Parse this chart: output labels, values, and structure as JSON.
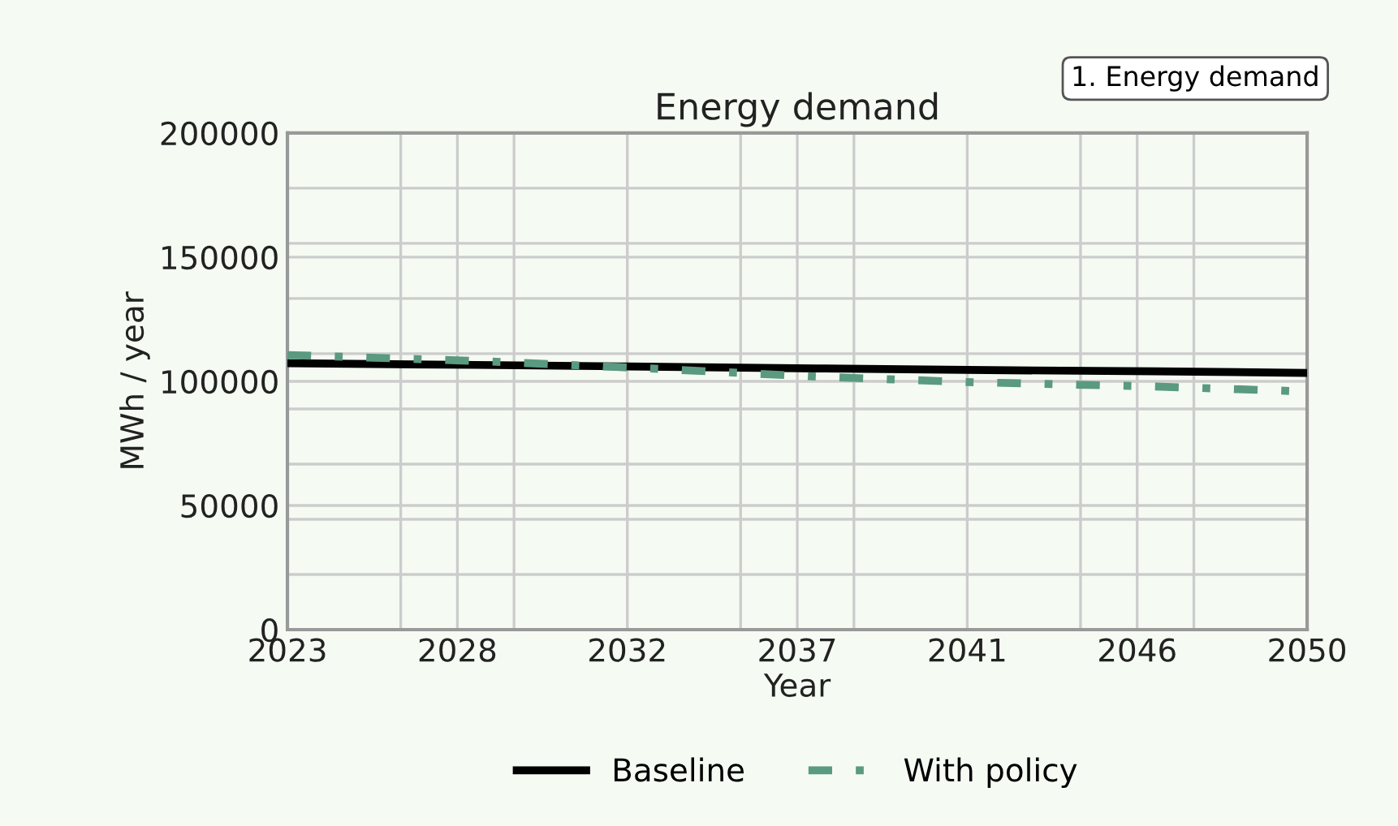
{
  "chart_data": {
    "type": "line",
    "title": "Energy demand",
    "xlabel": "Year",
    "ylabel": "MWh / year",
    "annotations": [
      "1. Energy demand"
    ],
    "xlim": [
      2023,
      2050
    ],
    "xticks": [
      2023,
      {
        "value": 2026,
        "label": null
      },
      {
        "value": 2027.5,
        "label": "2028"
      },
      {
        "value": 2029,
        "label": null
      },
      2032,
      {
        "value": 2035,
        "label": null
      },
      {
        "value": 2036.5,
        "label": "2037"
      },
      {
        "value": 2038,
        "label": null
      },
      2041,
      {
        "value": 2044,
        "label": null
      },
      {
        "value": 2045.5,
        "label": "2046"
      },
      {
        "value": 2047,
        "label": null
      },
      2050
    ],
    "ylim": [
      0,
      200000
    ],
    "yticks": [
      0,
      {
        "value": 22222,
        "label": null
      },
      {
        "value": 44444,
        "label": null
      },
      50000,
      {
        "value": 66667,
        "label": null
      },
      {
        "value": 88889,
        "label": null
      },
      100000,
      {
        "value": 111111,
        "label": null
      },
      {
        "value": 133333,
        "label": null
      },
      150000,
      {
        "value": 155556,
        "label": null
      },
      {
        "value": 177778,
        "label": null
      },
      200000
    ],
    "grid": true,
    "legend": "bottom",
    "x": [
      2023,
      2028,
      2032,
      2037,
      2041,
      2046,
      2050
    ],
    "series": [
      {
        "name": "Baseline",
        "color": "#000000",
        "line_style": "solid",
        "values": [
          107300,
          106600,
          106000,
          105200,
          104600,
          104000,
          103400
        ]
      },
      {
        "name": "With policy",
        "color": "#5a9a80",
        "line_style": "dashdot",
        "values": [
          110600,
          108200,
          105600,
          101900,
          99700,
          97900,
          95900
        ]
      }
    ]
  }
}
